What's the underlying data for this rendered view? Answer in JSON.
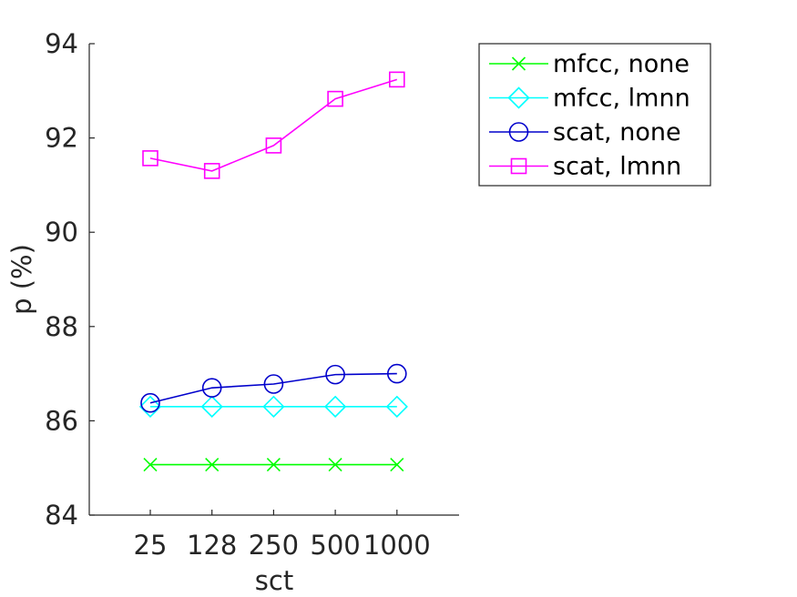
{
  "chart_data": {
    "type": "line",
    "xlabel": "sct",
    "ylabel": "p (%)",
    "categories": [
      "25",
      "128",
      "250",
      "500",
      "1000"
    ],
    "ylim": [
      84,
      94
    ],
    "yticks": [
      84,
      86,
      88,
      90,
      92,
      94
    ],
    "grid": false,
    "legend_position": "outside-top-right",
    "series": [
      {
        "name": "mfcc, none",
        "color": "#00ff00",
        "marker": "x",
        "values": [
          85.07,
          85.07,
          85.07,
          85.07,
          85.07
        ]
      },
      {
        "name": "mfcc, lmnn",
        "color": "#00ffff",
        "marker": "diamond",
        "values": [
          86.3,
          86.3,
          86.3,
          86.3,
          86.3
        ]
      },
      {
        "name": "scat, none",
        "color": "#0000cc",
        "marker": "circle",
        "values": [
          86.38,
          86.7,
          86.78,
          86.98,
          87.0
        ]
      },
      {
        "name": "scat, lmnn",
        "color": "#ff00ff",
        "marker": "square",
        "values": [
          91.57,
          91.3,
          91.84,
          92.83,
          93.24
        ]
      }
    ]
  }
}
